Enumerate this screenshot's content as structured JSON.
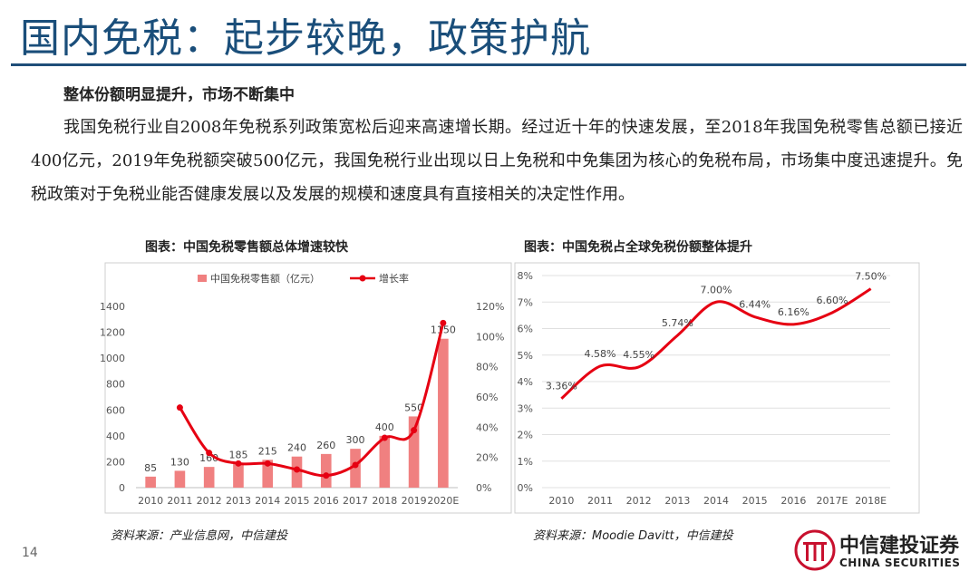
{
  "page": {
    "title": "国内免税：起步较晚，政策护航",
    "subheading": "整体份额明显提升，市场不断集中",
    "body": "我国免税行业自2008年免税系列政策宽松后迎来高速增长期。经过近十年的快速发展，至2018年我国免税零售总额已接近400亿元，2019年免税额突破500亿元，我国免税行业出现以日上免税和中免集团为核心的免税布局，市场集中度迅速提升。免税政策对于免税业能否健康发展以及发展的规模和速度具有直接相关的决定性作用。",
    "page_number": "14",
    "logo": {
      "cn": "中信建投证券",
      "en": "CHINA SECURITIES"
    }
  },
  "left": {
    "caption": "图表：中国免税零售额总体增速较快",
    "source": "资料来源：产业信息网，中信建投"
  },
  "right": {
    "caption": "图表：中国免税占全球免税份额整体提升",
    "source": "资料来源：Moodie Davitt，中信建投"
  },
  "colors": {
    "title": "#1a4e7a",
    "rule": "#1f4e79",
    "bar": "#f08080",
    "line": "#e60012"
  },
  "chart_data": [
    {
      "type": "bar",
      "categories": [
        "2010",
        "2011",
        "2012",
        "2013",
        "2014",
        "2015",
        "2016",
        "2017",
        "2018",
        "2019",
        "2020E"
      ],
      "series": [
        {
          "name": "中国免税零售额（亿元）",
          "type": "bar",
          "axis": "left",
          "values": [
            85,
            130,
            160,
            185,
            215,
            240,
            260,
            300,
            400,
            550,
            1150
          ],
          "labels": [
            "85",
            "130",
            "160",
            "185",
            "215",
            "240",
            "260",
            "300",
            "400",
            "550",
            "1150"
          ]
        },
        {
          "name": "增长率",
          "type": "line",
          "axis": "right",
          "values": [
            null,
            53,
            23,
            16,
            16,
            12,
            8,
            15,
            33,
            38,
            109
          ]
        }
      ],
      "ylim_left": [
        0,
        1400
      ],
      "yticks_left": [
        "0",
        "200",
        "400",
        "600",
        "800",
        "1000",
        "1200",
        "1400"
      ],
      "ylim_right": [
        0,
        120
      ],
      "yticks_right": [
        "0%",
        "20%",
        "40%",
        "60%",
        "80%",
        "100%",
        "120%"
      ],
      "legend": "top"
    },
    {
      "type": "line",
      "categories": [
        "2010",
        "2011",
        "2012",
        "2013",
        "2014",
        "2015",
        "2016",
        "2017E",
        "2018E"
      ],
      "values": [
        3.36,
        4.58,
        4.55,
        5.74,
        7.0,
        6.44,
        6.16,
        6.6,
        7.5
      ],
      "labels": [
        "3.36%",
        "4.58%",
        "4.55%",
        "5.74%",
        "7.00%",
        "6.44%",
        "6.16%",
        "6.60%",
        "7.50%"
      ],
      "ylim": [
        0,
        8
      ],
      "yticks": [
        "0%",
        "1%",
        "2%",
        "3%",
        "4%",
        "5%",
        "6%",
        "7%",
        "8%"
      ]
    }
  ]
}
